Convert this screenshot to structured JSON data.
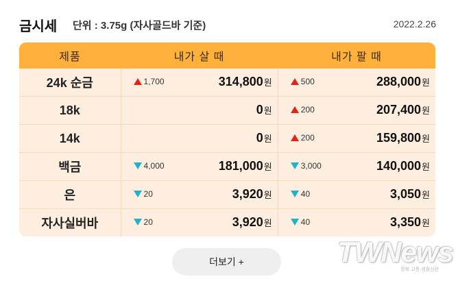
{
  "header": {
    "title": "금시세",
    "subtitle": "단위 : 3.75g (자사골드바 기준)",
    "date": "2022.2.26"
  },
  "table": {
    "columns": [
      "제품",
      "내가 살 때",
      "내가 팔 때"
    ],
    "currency": "원",
    "rows": [
      {
        "name": "24k 순금",
        "buy": {
          "dir": "up",
          "change": "1,700",
          "price": "314,800"
        },
        "sell": {
          "dir": "up",
          "change": "500",
          "price": "288,000"
        }
      },
      {
        "name": "18k",
        "buy": {
          "dir": "",
          "change": "",
          "price": "0"
        },
        "sell": {
          "dir": "up",
          "change": "200",
          "price": "207,400"
        }
      },
      {
        "name": "14k",
        "buy": {
          "dir": "",
          "change": "",
          "price": "0"
        },
        "sell": {
          "dir": "up",
          "change": "200",
          "price": "159,800"
        }
      },
      {
        "name": "백금",
        "buy": {
          "dir": "down",
          "change": "4,000",
          "price": "181,000"
        },
        "sell": {
          "dir": "down",
          "change": "3,000",
          "price": "140,000"
        }
      },
      {
        "name": "은",
        "buy": {
          "dir": "down",
          "change": "20",
          "price": "3,920"
        },
        "sell": {
          "dir": "down",
          "change": "40",
          "price": "3,050"
        }
      },
      {
        "name": "자사실버바",
        "buy": {
          "dir": "down",
          "change": "20",
          "price": "3,920"
        },
        "sell": {
          "dir": "down",
          "change": "40",
          "price": "3,350"
        }
      }
    ]
  },
  "more_button": {
    "label": "더보기 +"
  },
  "watermark": {
    "logo": "TWNews",
    "tagline": "경제·교통·생활신문"
  },
  "colors": {
    "header_bg": "#ffb13b",
    "table_bg": "#fdeedf",
    "up": "#e2231a",
    "down": "#20b2c8"
  }
}
